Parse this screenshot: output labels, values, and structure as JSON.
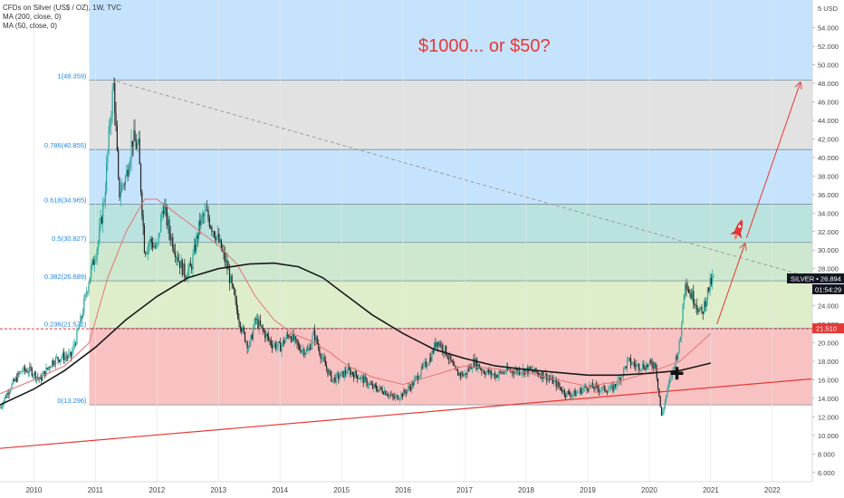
{
  "chart_data": {
    "type": "candlestick",
    "legend": {
      "symbol_line": "CFDs on Silver (US$ / OZ), 1W, TVC",
      "ma200_line": "MA (200, close, 0)",
      "ma50_line": "MA (50, close, 0)"
    },
    "headline": "$1000... or $50?",
    "y_axis": {
      "unit_label": "5 USD",
      "ylim": [
        5,
        57
      ],
      "ticks": [
        "6.000",
        "8.000",
        "10.000",
        "12.000",
        "14.000",
        "16.000",
        "18.000",
        "20.000",
        "22.000",
        "24.000",
        "26.000",
        "28.000",
        "30.000",
        "32.000",
        "34.000",
        "36.000",
        "38.000",
        "40.000",
        "42.000",
        "44.000",
        "46.000",
        "48.000",
        "50.000",
        "52.000",
        "54.000"
      ],
      "tick_values": [
        6,
        8,
        10,
        12,
        14,
        16,
        18,
        20,
        22,
        24,
        26,
        28,
        30,
        32,
        34,
        36,
        38,
        40,
        42,
        44,
        46,
        48,
        50,
        52,
        54
      ]
    },
    "x_axis": {
      "xlim": [
        2009.45,
        2022.65
      ],
      "ticks": [
        "2010",
        "2011",
        "2012",
        "2013",
        "2014",
        "2015",
        "2016",
        "2017",
        "2018",
        "2019",
        "2020",
        "2021",
        "2022"
      ],
      "tick_values": [
        2010,
        2011,
        2012,
        2013,
        2014,
        2015,
        2016,
        2017,
        2018,
        2019,
        2020,
        2021,
        2022
      ]
    },
    "fib_levels": [
      {
        "label": "1(48.359)",
        "value": 48.359
      },
      {
        "label": "0.786(40.855)",
        "value": 40.855
      },
      {
        "label": "0.618(34.965)",
        "value": 34.965
      },
      {
        "label": "0.5(30.827)",
        "value": 30.827
      },
      {
        "label": "0.382(26.689)",
        "value": 26.689
      },
      {
        "label": "0.236(21.571)",
        "value": 21.571
      },
      {
        "label": "0(13.296)",
        "value": 13.296
      }
    ],
    "fib_start_year": 2010.9,
    "price_tag": {
      "symbol": "SILVER",
      "value": "26.894",
      "countdown": "01:54:29"
    },
    "level_tag": {
      "value": "21.510"
    },
    "price_series": [
      [
        2009.45,
        13.0
      ],
      [
        2009.6,
        15.0
      ],
      [
        2009.8,
        17.0
      ],
      [
        2009.95,
        17.0
      ],
      [
        2010.1,
        16.0
      ],
      [
        2010.3,
        18.0
      ],
      [
        2010.45,
        18.5
      ],
      [
        2010.6,
        18.5
      ],
      [
        2010.75,
        22.0
      ],
      [
        2010.9,
        27.0
      ],
      [
        2011.05,
        31.0
      ],
      [
        2011.15,
        36.0
      ],
      [
        2011.25,
        45.0
      ],
      [
        2011.3,
        48.0
      ],
      [
        2011.38,
        36.0
      ],
      [
        2011.5,
        38.0
      ],
      [
        2011.6,
        42.0
      ],
      [
        2011.7,
        41.0
      ],
      [
        2011.8,
        30.0
      ],
      [
        2011.9,
        31.0
      ],
      [
        2012.0,
        30.0
      ],
      [
        2012.1,
        35.0
      ],
      [
        2012.2,
        32.0
      ],
      [
        2012.35,
        29.0
      ],
      [
        2012.45,
        27.5
      ],
      [
        2012.55,
        28.0
      ],
      [
        2012.7,
        33.0
      ],
      [
        2012.8,
        34.0
      ],
      [
        2012.9,
        32.5
      ],
      [
        2013.0,
        31.0
      ],
      [
        2013.15,
        28.0
      ],
      [
        2013.3,
        23.5
      ],
      [
        2013.4,
        21.0
      ],
      [
        2013.5,
        19.5
      ],
      [
        2013.6,
        22.5
      ],
      [
        2013.7,
        21.5
      ],
      [
        2013.85,
        20.0
      ],
      [
        2014.0,
        19.5
      ],
      [
        2014.15,
        21.0
      ],
      [
        2014.3,
        19.5
      ],
      [
        2014.45,
        19.0
      ],
      [
        2014.55,
        21.0
      ],
      [
        2014.7,
        18.0
      ],
      [
        2014.85,
        16.0
      ],
      [
        2015.0,
        16.5
      ],
      [
        2015.1,
        17.0
      ],
      [
        2015.3,
        16.3
      ],
      [
        2015.5,
        15.2
      ],
      [
        2015.7,
        14.8
      ],
      [
        2015.85,
        14.0
      ],
      [
        2016.0,
        14.5
      ],
      [
        2016.15,
        15.5
      ],
      [
        2016.3,
        17.0
      ],
      [
        2016.45,
        18.5
      ],
      [
        2016.55,
        20.3
      ],
      [
        2016.7,
        19.0
      ],
      [
        2016.85,
        16.8
      ],
      [
        2017.0,
        16.5
      ],
      [
        2017.15,
        18.0
      ],
      [
        2017.3,
        17.0
      ],
      [
        2017.5,
        16.5
      ],
      [
        2017.7,
        17.0
      ],
      [
        2017.9,
        17.0
      ],
      [
        2018.05,
        17.0
      ],
      [
        2018.3,
        16.5
      ],
      [
        2018.5,
        15.5
      ],
      [
        2018.65,
        14.5
      ],
      [
        2018.8,
        14.5
      ],
      [
        2019.0,
        15.3
      ],
      [
        2019.2,
        15.0
      ],
      [
        2019.4,
        15.0
      ],
      [
        2019.55,
        16.5
      ],
      [
        2019.65,
        18.0
      ],
      [
        2019.8,
        17.5
      ],
      [
        2019.95,
        17.5
      ],
      [
        2020.1,
        17.8
      ],
      [
        2020.2,
        12.0
      ],
      [
        2020.3,
        15.0
      ],
      [
        2020.4,
        17.5
      ],
      [
        2020.5,
        20.0
      ],
      [
        2020.58,
        27.0
      ],
      [
        2020.65,
        25.5
      ],
      [
        2020.75,
        24.5
      ],
      [
        2020.85,
        23.0
      ],
      [
        2020.95,
        25.5
      ],
      [
        2021.0,
        26.5
      ],
      [
        2021.05,
        26.9
      ]
    ],
    "ma200_series": [
      [
        2009.45,
        13.3
      ],
      [
        2010.0,
        15.0
      ],
      [
        2010.5,
        17.0
      ],
      [
        2011.0,
        19.5
      ],
      [
        2011.5,
        22.5
      ],
      [
        2012.0,
        25.0
      ],
      [
        2012.5,
        27.0
      ],
      [
        2013.0,
        28.0
      ],
      [
        2013.5,
        28.5
      ],
      [
        2013.9,
        28.6
      ],
      [
        2014.3,
        28.2
      ],
      [
        2014.7,
        27.0
      ],
      [
        2015.1,
        25.0
      ],
      [
        2015.5,
        23.0
      ],
      [
        2016.0,
        21.0
      ],
      [
        2016.5,
        19.3
      ],
      [
        2017.0,
        18.3
      ],
      [
        2017.5,
        17.5
      ],
      [
        2018.0,
        17.1
      ],
      [
        2018.5,
        16.8
      ],
      [
        2019.0,
        16.5
      ],
      [
        2019.5,
        16.5
      ],
      [
        2020.0,
        16.7
      ],
      [
        2020.5,
        17.0
      ],
      [
        2021.0,
        17.8
      ]
    ],
    "ma50_series": [
      [
        2009.45,
        14.5
      ],
      [
        2010.0,
        16.0
      ],
      [
        2010.5,
        17.5
      ],
      [
        2010.9,
        20.0
      ],
      [
        2011.2,
        27.0
      ],
      [
        2011.5,
        32.0
      ],
      [
        2011.8,
        35.5
      ],
      [
        2012.0,
        35.5
      ],
      [
        2012.2,
        34.5
      ],
      [
        2012.5,
        33.0
      ],
      [
        2012.8,
        31.5
      ],
      [
        2013.0,
        30.5
      ],
      [
        2013.3,
        28.5
      ],
      [
        2013.6,
        25.0
      ],
      [
        2013.9,
        22.5
      ],
      [
        2014.2,
        21.0
      ],
      [
        2014.5,
        20.2
      ],
      [
        2014.8,
        19.0
      ],
      [
        2015.1,
        17.5
      ],
      [
        2015.5,
        16.3
      ],
      [
        2016.0,
        15.5
      ],
      [
        2016.5,
        16.5
      ],
      [
        2017.0,
        17.5
      ],
      [
        2017.5,
        17.2
      ],
      [
        2018.0,
        16.8
      ],
      [
        2018.5,
        16.0
      ],
      [
        2019.0,
        15.3
      ],
      [
        2019.5,
        15.8
      ],
      [
        2020.0,
        16.8
      ],
      [
        2020.5,
        18.0
      ],
      [
        2021.0,
        21.0
      ]
    ],
    "trendlines": {
      "resistance": [
        [
          2011.35,
          48.2
        ],
        [
          2022.65,
          27.0
        ]
      ],
      "support": [
        [
          2009.45,
          8.6
        ],
        [
          2022.65,
          16.1
        ]
      ]
    },
    "projection": {
      "arrow1": [
        [
          2021.1,
          22.0
        ],
        [
          2021.55,
          30.6
        ]
      ],
      "arrow2": [
        [
          2021.58,
          31.3
        ],
        [
          2022.45,
          48.0
        ]
      ],
      "rocket_icon": "rocket-icon"
    },
    "buy_marker_icon": "cross-marker-icon",
    "colors": {
      "up": "#26a69a",
      "down": "#222222",
      "ma200": "#1a1a1a",
      "ma50": "#e57373",
      "accent_red": "#e53935",
      "tag_dark": "#131722"
    }
  }
}
